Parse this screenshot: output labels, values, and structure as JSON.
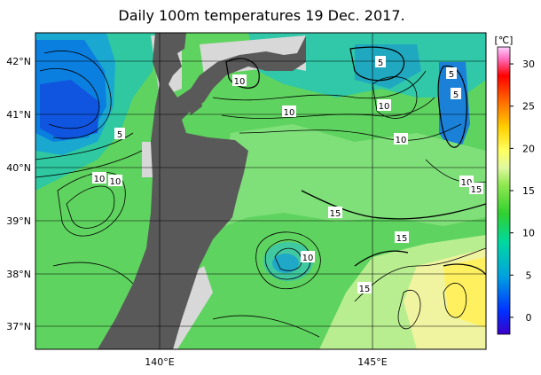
{
  "title": "Daily 100m temperatures 19 Dec. 2017.",
  "colorbar": {
    "unit_label": "[℃]",
    "ticks": [
      "30",
      "25",
      "20",
      "15",
      "10",
      "5",
      "0"
    ],
    "tick_values": [
      30,
      25,
      20,
      15,
      10,
      5,
      0
    ],
    "range": [
      -2,
      32
    ]
  },
  "axes": {
    "lat_labels": [
      "42°N",
      "41°N",
      "40°N",
      "39°N",
      "38°N",
      "37°N"
    ],
    "lon_labels": [
      "140°E",
      "145°E"
    ]
  },
  "contour_labels": [
    "5",
    "5",
    "5",
    "5",
    "10",
    "10",
    "10",
    "10",
    "10",
    "10",
    "10",
    "15",
    "15",
    "15",
    "15",
    "10",
    "15"
  ],
  "colors": {
    "land": "#595959",
    "no_data": "#d8d8d8",
    "sea_base": "#5fd35f"
  }
}
